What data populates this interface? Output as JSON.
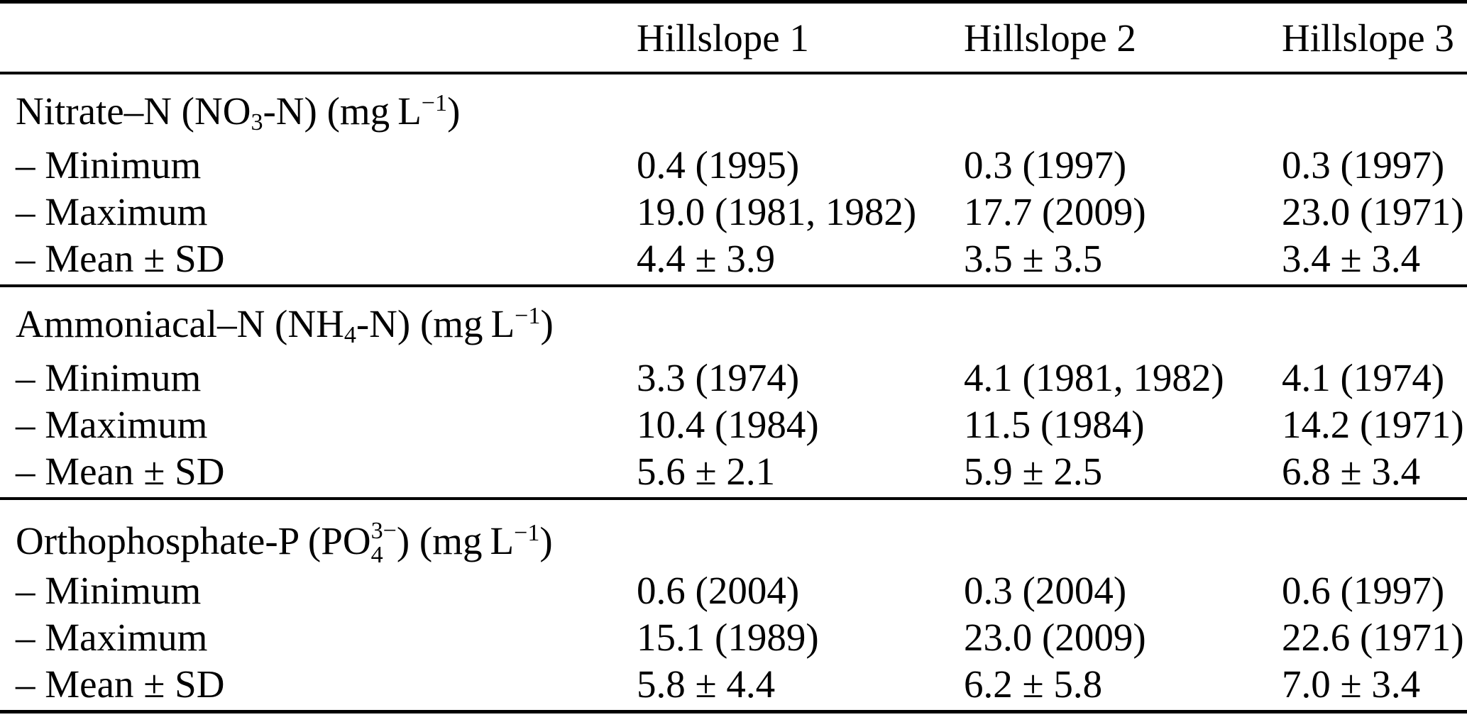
{
  "table": {
    "header": {
      "corner": "",
      "columns": [
        "Hillslope 1",
        "Hillslope 2",
        "Hillslope 3"
      ]
    },
    "sections": [
      {
        "title": {
          "pre": "Nitrate–N (NO",
          "sub": "3",
          "mid": "-N) (mg L",
          "sup": "−1",
          "post": ")"
        },
        "rows": [
          {
            "label": "– Minimum",
            "values": [
              "0.4 (1995)",
              "0.3 (1997)",
              "0.3 (1997)"
            ]
          },
          {
            "label": "– Maximum",
            "values": [
              "19.0 (1981, 1982)",
              "17.7 (2009)",
              "23.0 (1971)"
            ]
          },
          {
            "label": "– Mean ± SD",
            "values": [
              "4.4 ± 3.9",
              "3.5 ± 3.5",
              "3.4 ± 3.4"
            ]
          }
        ]
      },
      {
        "title": {
          "pre": "Ammoniacal–N (NH",
          "sub": "4",
          "mid": "-N) (mg L",
          "sup": "−1",
          "post": ")"
        },
        "rows": [
          {
            "label": "– Minimum",
            "values": [
              "3.3 (1974)",
              "4.1 (1981, 1982)",
              "4.1 (1974)"
            ]
          },
          {
            "label": "– Maximum",
            "values": [
              "10.4 (1984)",
              "11.5 (1984)",
              "14.2 (1971)"
            ]
          },
          {
            "label": "– Mean ± SD",
            "values": [
              "5.6 ± 2.1",
              "5.9 ± 2.5",
              "6.8 ± 3.4"
            ]
          }
        ]
      },
      {
        "title": {
          "pre": "Orthophosphate-P (PO",
          "stack_sup": "3−",
          "stack_sub": "4",
          "mid": ") (mg L",
          "sup": "−1",
          "post": ")"
        },
        "rows": [
          {
            "label": "– Minimum",
            "values": [
              "0.6 (2004)",
              "0.3 (2004)",
              "0.6 (1997)"
            ]
          },
          {
            "label": "– Maximum",
            "values": [
              "15.1 (1989)",
              "23.0 (2009)",
              "22.6 (1971)"
            ]
          },
          {
            "label": "– Mean ± SD",
            "values": [
              "5.8 ± 4.4",
              "6.2 ± 5.8",
              "7.0 ± 3.4"
            ]
          }
        ]
      }
    ]
  }
}
